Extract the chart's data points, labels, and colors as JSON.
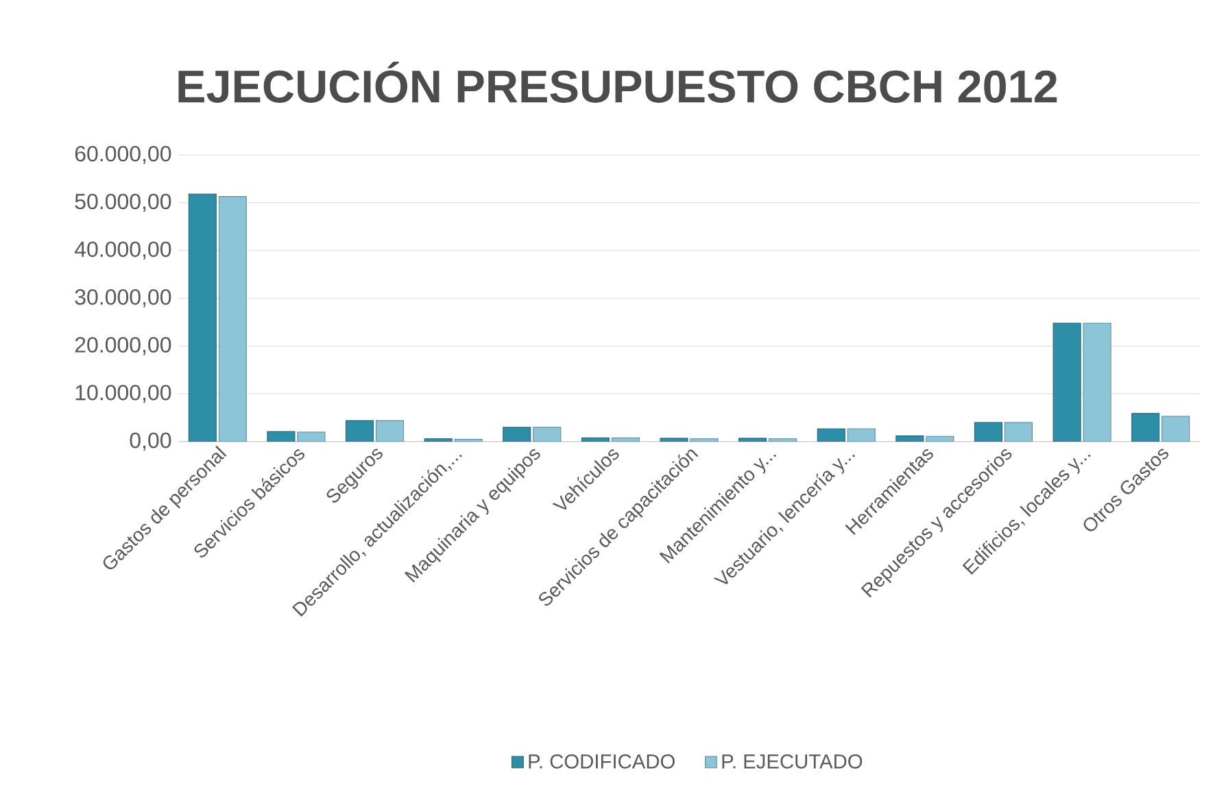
{
  "chart_data": {
    "type": "bar",
    "title": "EJECUCIÓN PRESUPUESTO CBCH 2012",
    "categories": [
      "Gastos de personal",
      "Servicios básicos",
      "Seguros",
      "Desarrollo, actualización,...",
      "Maquinaria y equipos",
      "Vehículos",
      "Servicios de capacitación",
      "Mantenimiento y...",
      "Vestuario, lencería y...",
      "Herramientas",
      "Repuestos y accesorios",
      "Edificios, locales y...",
      "Otros Gastos"
    ],
    "series": [
      {
        "name": "P. CODIFICADO",
        "color": "#2e8ea8",
        "values": [
          51800,
          2100,
          4400,
          600,
          3000,
          800,
          700,
          700,
          2700,
          1200,
          4000,
          24800,
          5900
        ]
      },
      {
        "name": "P. EJECUTADO",
        "color": "#8cc4d8",
        "values": [
          51300,
          2000,
          4400,
          500,
          3000,
          800,
          600,
          600,
          2700,
          1100,
          4000,
          24800,
          5300
        ]
      }
    ],
    "ylim": [
      0,
      60000
    ],
    "yticks": [
      {
        "value": 0,
        "label": "0,00"
      },
      {
        "value": 10000,
        "label": "10.000,00"
      },
      {
        "value": 20000,
        "label": "20.000,00"
      },
      {
        "value": 30000,
        "label": "30.000,00"
      },
      {
        "value": 40000,
        "label": "40.000,00"
      },
      {
        "value": 50000,
        "label": "50.000,00"
      },
      {
        "value": 60000,
        "label": "60.000,00"
      }
    ],
    "grid": "y",
    "legend": "bottom"
  }
}
